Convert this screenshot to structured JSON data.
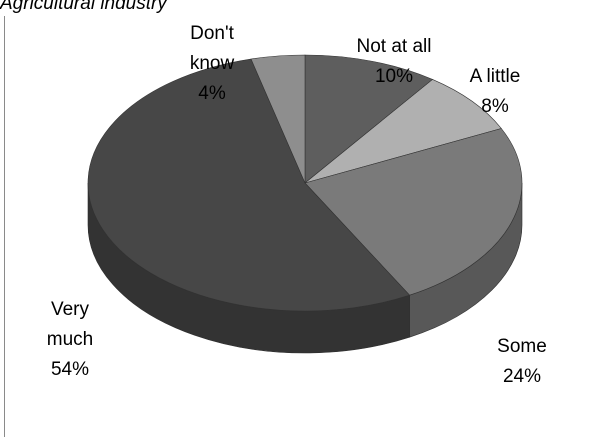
{
  "chart_data": {
    "type": "pie",
    "title": "Agricultural industry",
    "three_d": true,
    "slices": [
      {
        "label": "Not at all",
        "value": 10,
        "percent_label": "10%",
        "color": "#5e5e5e",
        "label_lines": [
          "Not at all",
          "10%"
        ]
      },
      {
        "label": "A little",
        "value": 8,
        "percent_label": "8%",
        "color": "#b0b0b0",
        "label_lines": [
          "A little",
          "8%"
        ]
      },
      {
        "label": "Some",
        "value": 24,
        "percent_label": "24%",
        "color": "#7a7a7a",
        "label_lines": [
          "Some",
          "24%"
        ]
      },
      {
        "label": "Very much",
        "value": 54,
        "percent_label": "54%",
        "color": "#474747",
        "label_lines": [
          "Very",
          "much",
          "54%"
        ]
      },
      {
        "label": "Don't know",
        "value": 4,
        "percent_label": "4%",
        "color": "#8e8e8e",
        "label_lines": [
          "Don't",
          "know",
          "4%"
        ]
      }
    ]
  }
}
